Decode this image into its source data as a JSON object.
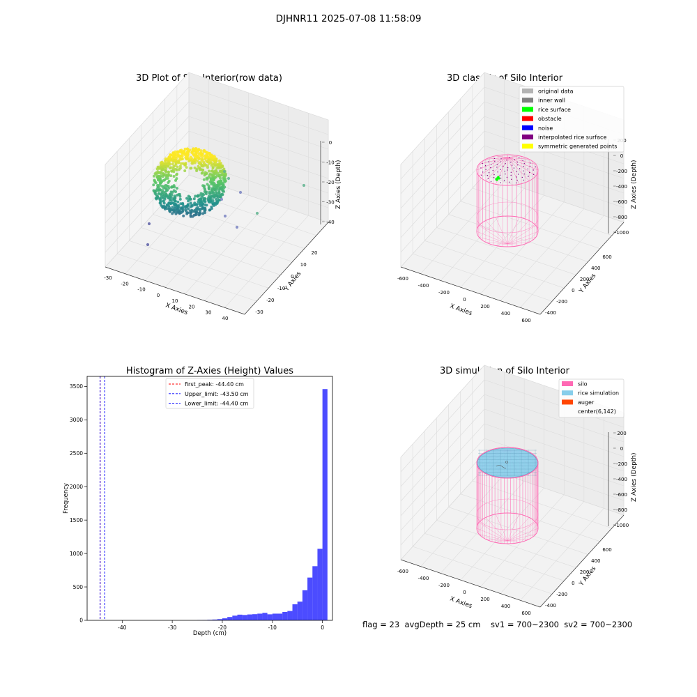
{
  "figure": {
    "suptitle": "DJHNR11 2025-07-08 11:58:09",
    "status_text": "flag = 23  avgDepth = 25 cm    sv1 = 700~2300  sv2 = 700~2300"
  },
  "chart_data": [
    {
      "type": "scatter",
      "title": "3D Plot of Silo Interior(row data)",
      "xlabel": "X Axies",
      "ylabel": "Y Axies",
      "zlabel": "Z Axies (Depth)",
      "x_ticks": [
        "-30",
        "-20",
        "-10",
        "0",
        "10",
        "20",
        "30",
        "40"
      ],
      "y_ticks": [
        "-30",
        "-20",
        "-10",
        "0",
        "10",
        "20"
      ],
      "z_ticks": [
        "0",
        "-10",
        "-20",
        "-30",
        "-40"
      ],
      "xlim": [
        -30,
        45
      ],
      "ylim": [
        -35,
        25
      ],
      "zlim": [
        -45,
        0
      ],
      "colormap": "viridis",
      "noise_points": [
        {
          "x": -25,
          "y": -5,
          "z": -42
        },
        {
          "x": -22,
          "y": 5,
          "z": -30
        },
        {
          "x": 20,
          "y": -10,
          "z": -28
        },
        {
          "x": 30,
          "y": -5,
          "z": -22
        },
        {
          "x": 35,
          "y": 5,
          "z": -15
        },
        {
          "x": 38,
          "y": 20,
          "z": -5
        }
      ]
    },
    {
      "type": "scatter",
      "title": "3D classify of Silo Interior",
      "xlabel": "X Axies",
      "ylabel": "Y Axies",
      "zlabel": "Z Axies (Depth)",
      "x_ticks": [
        "-600",
        "-400",
        "-200",
        "0",
        "200",
        "400",
        "600"
      ],
      "y_ticks": [
        "-400",
        "-200",
        "0",
        "200",
        "400",
        "600"
      ],
      "z_ticks": [
        "200",
        "0",
        "-200",
        "-400",
        "-600",
        "-800",
        "-1000"
      ],
      "legend": [
        {
          "label": "original data",
          "color": "#b3b3b3"
        },
        {
          "label": "inner wall",
          "color": "#808080"
        },
        {
          "label": "rice surface",
          "color": "#00ff00"
        },
        {
          "label": "obstacle",
          "color": "#ff0000"
        },
        {
          "label": "noise",
          "color": "#0000ff"
        },
        {
          "label": "interpolated rice surface",
          "color": "#800080"
        },
        {
          "label": "symmetric generated points",
          "color": "#ffff00"
        }
      ]
    },
    {
      "type": "bar",
      "title": "Histogram of Z-Axies (Height) Values",
      "xlabel": "Depth (cm)",
      "ylabel": "Frequency",
      "xlim": [
        -47,
        2
      ],
      "ylim": [
        0,
        3650
      ],
      "x_ticks": [
        -40,
        -30,
        -20,
        -10,
        0
      ],
      "y_ticks": [
        0,
        500,
        1000,
        1500,
        2000,
        2500,
        3000,
        3500
      ],
      "bar_color": "#0000ff",
      "bin_width": 1.0,
      "bins": [
        {
          "x": -24.5,
          "y": 3
        },
        {
          "x": -23.5,
          "y": 5
        },
        {
          "x": -22.5,
          "y": 8
        },
        {
          "x": -21.5,
          "y": 12
        },
        {
          "x": -20.5,
          "y": 18
        },
        {
          "x": -19.5,
          "y": 30
        },
        {
          "x": -18.5,
          "y": 50
        },
        {
          "x": -17.5,
          "y": 70
        },
        {
          "x": -16.5,
          "y": 85
        },
        {
          "x": -15.5,
          "y": 80
        },
        {
          "x": -14.5,
          "y": 88
        },
        {
          "x": -13.5,
          "y": 92
        },
        {
          "x": -12.5,
          "y": 100
        },
        {
          "x": -11.5,
          "y": 112
        },
        {
          "x": -10.5,
          "y": 90
        },
        {
          "x": -9.5,
          "y": 100
        },
        {
          "x": -8.5,
          "y": 100
        },
        {
          "x": -7.5,
          "y": 125
        },
        {
          "x": -6.5,
          "y": 140
        },
        {
          "x": -5.5,
          "y": 240
        },
        {
          "x": -4.5,
          "y": 280
        },
        {
          "x": -3.5,
          "y": 450
        },
        {
          "x": -2.5,
          "y": 640
        },
        {
          "x": -1.5,
          "y": 810
        },
        {
          "x": -0.5,
          "y": 1070
        },
        {
          "x": 0.5,
          "y": 3460
        }
      ],
      "vlines": [
        {
          "label": "first_peak: -44.40 cm",
          "x": -44.4,
          "color": "#ff0000"
        },
        {
          "label": "Upper_limit: -43.50 cm",
          "x": -43.5,
          "color": "#0000ff"
        },
        {
          "label": "Lower_limit: -44.40 cm",
          "x": -44.4,
          "color": "#0000ff"
        }
      ]
    },
    {
      "type": "scatter",
      "title": "3D simulation of Silo Interior",
      "xlabel": "X Axies",
      "ylabel": "Y Axies",
      "zlabel": "Z Axies (Depth)",
      "x_ticks": [
        "-600",
        "-400",
        "-200",
        "0",
        "200",
        "400",
        "600"
      ],
      "y_ticks": [
        "-400",
        "-200",
        "0",
        "200",
        "400",
        "600"
      ],
      "z_ticks": [
        "200",
        "0",
        "-200",
        "-400",
        "-600",
        "-800",
        "-1000"
      ],
      "legend": [
        {
          "label": "silo",
          "color": "#ff69b4"
        },
        {
          "label": "rice simulation",
          "color": "#87ceeb"
        },
        {
          "label": "auger",
          "color": "#ff4500"
        },
        {
          "label": "center(6,142)",
          "color": ""
        }
      ]
    }
  ]
}
